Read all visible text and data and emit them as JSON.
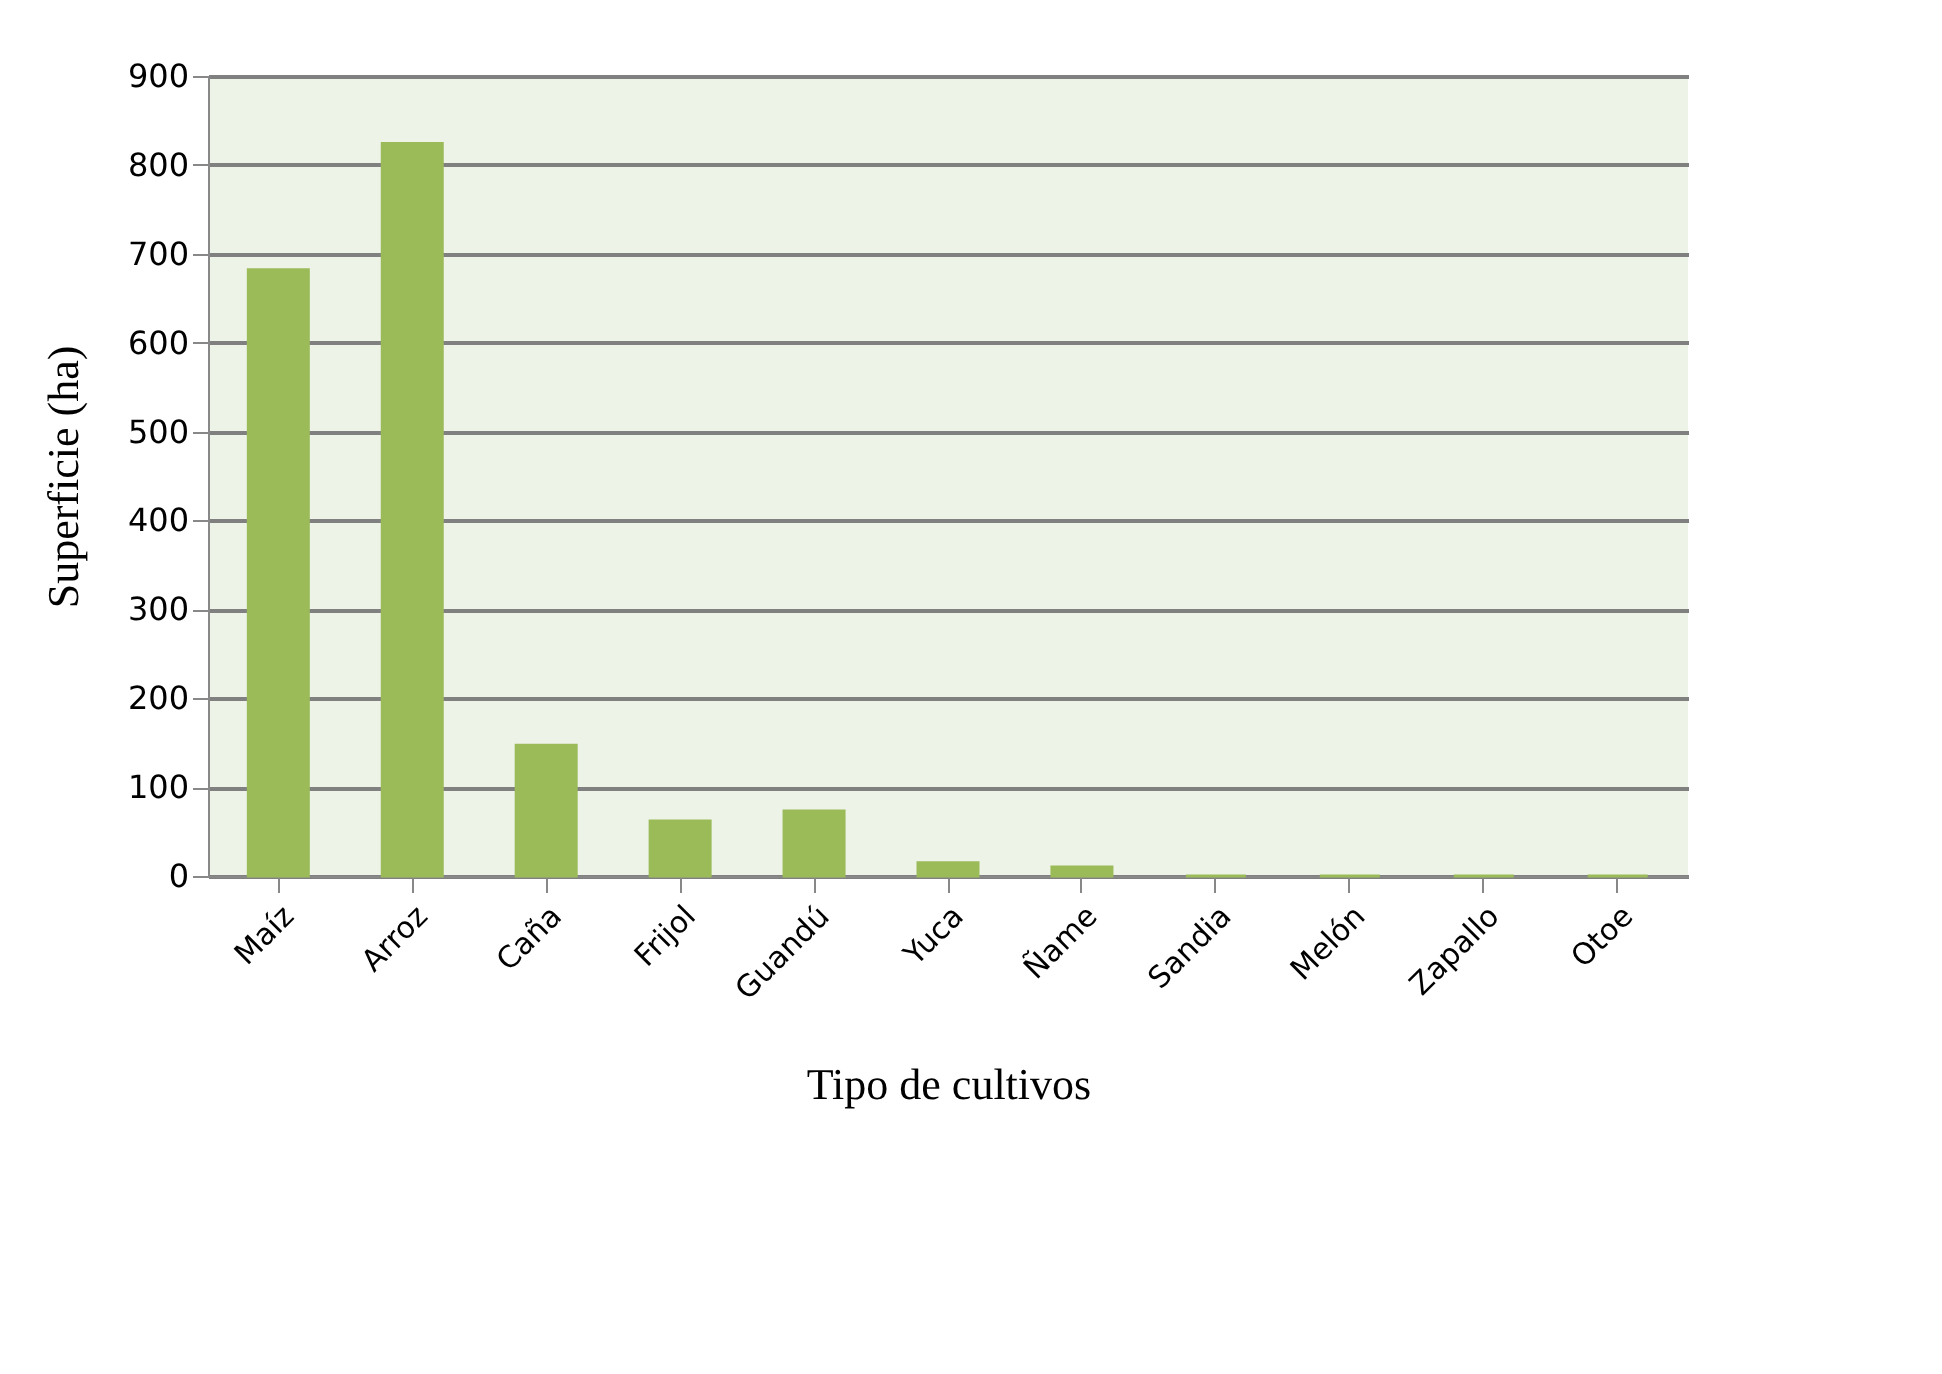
{
  "chart_data": {
    "type": "bar",
    "xlabel": "Tipo de cultivos",
    "ylabel": "Superficie  (ha)",
    "categories": [
      "Maíz",
      "Arroz",
      "Caña",
      "Frijol",
      "Guandú",
      "Yuca",
      "Ñame",
      "Sandia",
      "Melón",
      "Zapallo",
      "Otoe"
    ],
    "values": [
      682,
      824,
      147,
      62,
      73,
      15,
      10,
      0,
      0,
      0,
      0
    ],
    "color": "#9bbb59",
    "ylim": [
      0,
      900
    ],
    "yticks": [
      0,
      100,
      200,
      300,
      400,
      500,
      600,
      700,
      800,
      900
    ],
    "grid": "y"
  }
}
